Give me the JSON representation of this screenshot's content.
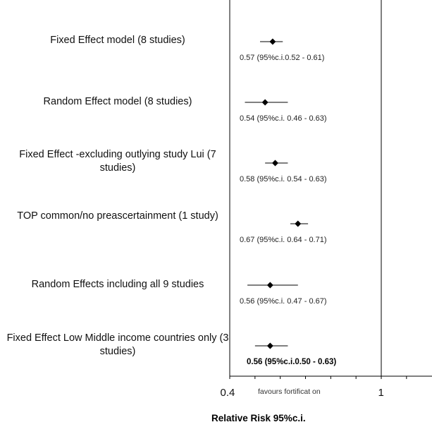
{
  "chart_data": {
    "type": "forest",
    "xlabel": "Relative Risk 95%c.i.",
    "x_axis_ticks": [
      {
        "value": 0.4,
        "label": "0.4"
      },
      {
        "value": 1,
        "label": "1"
      }
    ],
    "xlim": [
      0.4,
      1.2
    ],
    "reference_line": 1,
    "region_label": "favours fortificat on",
    "rows": [
      {
        "label": "Fixed Effect model (8 studies)",
        "estimate": 0.57,
        "ci_low": 0.52,
        "ci_high": 0.61,
        "ci_text": "0.57 (95%c.i.0.52 - 0.61)",
        "bold": false
      },
      {
        "label": "Random Effect model (8 studies)",
        "estimate": 0.54,
        "ci_low": 0.46,
        "ci_high": 0.63,
        "ci_text": "0.54 (95%c.i. 0.46 - 0.63)",
        "bold": false
      },
      {
        "label": "Fixed Effect -excluding outlying study Lui (7 studies)",
        "estimate": 0.58,
        "ci_low": 0.54,
        "ci_high": 0.63,
        "ci_text": "0.58 (95%c.i. 0.54 - 0.63)",
        "bold": false
      },
      {
        "label": "TOP common/no preascertainment (1 study)",
        "estimate": 0.67,
        "ci_low": 0.64,
        "ci_high": 0.71,
        "ci_text": "0.67 (95%c.i. 0.64 - 0.71)",
        "bold": false
      },
      {
        "label": "Random Effects including all 9 studies",
        "estimate": 0.56,
        "ci_low": 0.47,
        "ci_high": 0.67,
        "ci_text": "0.56 (95%c.i. 0.47 - 0.67)",
        "bold": false
      },
      {
        "label": "Fixed Effect Low Middle income countries only (3 studies)",
        "estimate": 0.56,
        "ci_low": 0.5,
        "ci_high": 0.63,
        "ci_text": "0.56 (95%c.i.0.50 - 0.63)",
        "bold": true
      }
    ],
    "grid": false,
    "marker_color": "#000000",
    "line_color": "#000000"
  }
}
